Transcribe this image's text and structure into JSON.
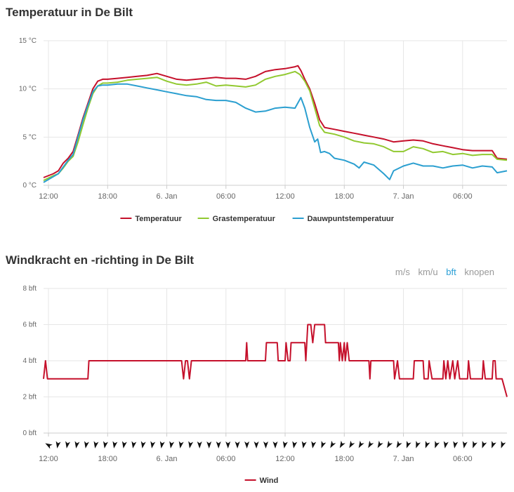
{
  "chart_data": [
    {
      "type": "line",
      "title": "Temperatuur in De Bilt",
      "ylim": [
        0,
        15
      ],
      "yticks": [
        "0 °C",
        "5 °C",
        "10 °C",
        "15 °C"
      ],
      "ytick_values": [
        0,
        5,
        10,
        15
      ],
      "x_unit": "hours since first tick (12:00)",
      "xlim": [
        -0.5,
        46.5
      ],
      "xticks": [
        {
          "h": 0,
          "label": "12:00"
        },
        {
          "h": 6,
          "label": "18:00"
        },
        {
          "h": 12,
          "label": "6. Jan"
        },
        {
          "h": 18,
          "label": "06:00"
        },
        {
          "h": 24,
          "label": "12:00"
        },
        {
          "h": 30,
          "label": "18:00"
        },
        {
          "h": 36,
          "label": "7. Jan"
        },
        {
          "h": 42,
          "label": "06:00"
        }
      ],
      "series": [
        {
          "name": "Temperatuur",
          "color": "#c5102b",
          "points": [
            [
              -0.5,
              0.8
            ],
            [
              0.5,
              1.2
            ],
            [
              1,
              1.5
            ],
            [
              1.5,
              2.3
            ],
            [
              2,
              2.8
            ],
            [
              2.5,
              3.5
            ],
            [
              3,
              5.2
            ],
            [
              3.5,
              7.0
            ],
            [
              4,
              8.5
            ],
            [
              4.5,
              10.0
            ],
            [
              5,
              10.8
            ],
            [
              5.5,
              11.0
            ],
            [
              6,
              11.0
            ],
            [
              7,
              11.1
            ],
            [
              8,
              11.2
            ],
            [
              9,
              11.3
            ],
            [
              10,
              11.4
            ],
            [
              11,
              11.6
            ],
            [
              12,
              11.3
            ],
            [
              13,
              11.0
            ],
            [
              14,
              10.9
            ],
            [
              15,
              11.0
            ],
            [
              16,
              11.1
            ],
            [
              17,
              11.2
            ],
            [
              18,
              11.1
            ],
            [
              19,
              11.1
            ],
            [
              20,
              11.0
            ],
            [
              21,
              11.3
            ],
            [
              22,
              11.8
            ],
            [
              23,
              12.0
            ],
            [
              24,
              12.1
            ],
            [
              25,
              12.3
            ],
            [
              25.3,
              12.4
            ],
            [
              25.6,
              11.9
            ],
            [
              26,
              11.0
            ],
            [
              26.5,
              10.0
            ],
            [
              27,
              8.5
            ],
            [
              27.5,
              6.8
            ],
            [
              28,
              6.0
            ],
            [
              29,
              5.8
            ],
            [
              30,
              5.6
            ],
            [
              31,
              5.4
            ],
            [
              32,
              5.2
            ],
            [
              33,
              5.0
            ],
            [
              34,
              4.8
            ],
            [
              35,
              4.5
            ],
            [
              36,
              4.6
            ],
            [
              37,
              4.7
            ],
            [
              38,
              4.6
            ],
            [
              39,
              4.3
            ],
            [
              40,
              4.1
            ],
            [
              41,
              3.9
            ],
            [
              42,
              3.7
            ],
            [
              43,
              3.6
            ],
            [
              44,
              3.6
            ],
            [
              45,
              3.6
            ],
            [
              45.5,
              2.8
            ],
            [
              46.5,
              2.7
            ]
          ]
        },
        {
          "name": "Grastemperatuur",
          "color": "#91c930",
          "points": [
            [
              -0.5,
              0.5
            ],
            [
              0.5,
              1.0
            ],
            [
              1,
              1.2
            ],
            [
              1.5,
              1.8
            ],
            [
              2,
              2.5
            ],
            [
              2.5,
              3.0
            ],
            [
              3,
              4.5
            ],
            [
              3.5,
              6.3
            ],
            [
              4,
              8.0
            ],
            [
              4.5,
              9.5
            ],
            [
              5,
              10.3
            ],
            [
              5.5,
              10.6
            ],
            [
              6,
              10.6
            ],
            [
              7,
              10.7
            ],
            [
              8,
              10.9
            ],
            [
              9,
              11.0
            ],
            [
              10,
              11.1
            ],
            [
              11,
              11.2
            ],
            [
              12,
              10.8
            ],
            [
              13,
              10.5
            ],
            [
              14,
              10.4
            ],
            [
              15,
              10.5
            ],
            [
              16,
              10.7
            ],
            [
              17,
              10.3
            ],
            [
              18,
              10.4
            ],
            [
              19,
              10.3
            ],
            [
              20,
              10.2
            ],
            [
              21,
              10.4
            ],
            [
              22,
              11.0
            ],
            [
              23,
              11.3
            ],
            [
              24,
              11.5
            ],
            [
              25,
              11.8
            ],
            [
              25.5,
              11.5
            ],
            [
              26,
              10.8
            ],
            [
              26.5,
              9.8
            ],
            [
              27,
              8.0
            ],
            [
              27.5,
              6.2
            ],
            [
              28,
              5.5
            ],
            [
              29,
              5.3
            ],
            [
              30,
              5.0
            ],
            [
              31,
              4.6
            ],
            [
              32,
              4.4
            ],
            [
              33,
              4.3
            ],
            [
              34,
              4.0
            ],
            [
              35,
              3.5
            ],
            [
              36,
              3.5
            ],
            [
              37,
              4.0
            ],
            [
              38,
              3.8
            ],
            [
              39,
              3.4
            ],
            [
              40,
              3.5
            ],
            [
              41,
              3.2
            ],
            [
              42,
              3.3
            ],
            [
              43,
              3.1
            ],
            [
              44,
              3.2
            ],
            [
              45,
              3.2
            ],
            [
              45.5,
              2.7
            ],
            [
              46.5,
              2.6
            ]
          ]
        },
        {
          "name": "Dauwpuntstemperatuur",
          "color": "#2b9fd0",
          "points": [
            [
              -0.5,
              0.3
            ],
            [
              0.5,
              0.9
            ],
            [
              1,
              1.2
            ],
            [
              1.5,
              1.9
            ],
            [
              2,
              2.6
            ],
            [
              2.5,
              3.2
            ],
            [
              3,
              5.0
            ],
            [
              3.5,
              6.8
            ],
            [
              4,
              8.3
            ],
            [
              4.5,
              9.7
            ],
            [
              5,
              10.3
            ],
            [
              5.5,
              10.4
            ],
            [
              6,
              10.4
            ],
            [
              7,
              10.5
            ],
            [
              8,
              10.5
            ],
            [
              9,
              10.3
            ],
            [
              10,
              10.1
            ],
            [
              11,
              9.9
            ],
            [
              12,
              9.7
            ],
            [
              13,
              9.5
            ],
            [
              14,
              9.3
            ],
            [
              15,
              9.2
            ],
            [
              16,
              8.9
            ],
            [
              17,
              8.8
            ],
            [
              18,
              8.8
            ],
            [
              19,
              8.6
            ],
            [
              20,
              8.0
            ],
            [
              21,
              7.6
            ],
            [
              22,
              7.7
            ],
            [
              23,
              8.0
            ],
            [
              24,
              8.1
            ],
            [
              25,
              8.0
            ],
            [
              25.6,
              9.1
            ],
            [
              26,
              8.0
            ],
            [
              26.5,
              6.0
            ],
            [
              27,
              4.5
            ],
            [
              27.3,
              4.8
            ],
            [
              27.6,
              3.4
            ],
            [
              28,
              3.5
            ],
            [
              28.5,
              3.3
            ],
            [
              29,
              2.8
            ],
            [
              30,
              2.6
            ],
            [
              31,
              2.2
            ],
            [
              31.5,
              1.8
            ],
            [
              32,
              2.4
            ],
            [
              33,
              2.1
            ],
            [
              34,
              1.2
            ],
            [
              34.6,
              0.6
            ],
            [
              35,
              1.5
            ],
            [
              36,
              2.0
            ],
            [
              37,
              2.3
            ],
            [
              38,
              2.0
            ],
            [
              39,
              2.0
            ],
            [
              40,
              1.8
            ],
            [
              41,
              2.0
            ],
            [
              42,
              2.1
            ],
            [
              43,
              1.8
            ],
            [
              44,
              2.0
            ],
            [
              45,
              1.9
            ],
            [
              45.5,
              1.3
            ],
            [
              46.5,
              1.5
            ]
          ]
        }
      ],
      "legend_placement": "bottom-center"
    },
    {
      "type": "line",
      "title": "Windkracht en -richting in De Bilt",
      "ylim": [
        0,
        8
      ],
      "yticks": [
        "0 bft",
        "2 bft",
        "4 bft",
        "6 bft",
        "8 bft"
      ],
      "ytick_values": [
        0,
        2,
        4,
        6,
        8
      ],
      "x_unit": "hours since first tick (12:00)",
      "xlim": [
        -0.5,
        46.5
      ],
      "xticks": [
        {
          "h": 0,
          "label": "12:00"
        },
        {
          "h": 6,
          "label": "18:00"
        },
        {
          "h": 12,
          "label": "6. Jan"
        },
        {
          "h": 18,
          "label": "06:00"
        },
        {
          "h": 24,
          "label": "12:00"
        },
        {
          "h": 30,
          "label": "18:00"
        },
        {
          "h": 36,
          "label": "7. Jan"
        },
        {
          "h": 42,
          "label": "06:00"
        }
      ],
      "unit_options": [
        "m/s",
        "km/u",
        "bft",
        "knopen"
      ],
      "selected_unit": "bft",
      "series": [
        {
          "name": "Wind",
          "color": "#c5102b",
          "points": [
            [
              -0.5,
              3
            ],
            [
              -0.3,
              4
            ],
            [
              -0.1,
              3
            ],
            [
              4,
              3
            ],
            [
              4.1,
              4
            ],
            [
              13.5,
              4
            ],
            [
              13.7,
              3
            ],
            [
              13.9,
              4
            ],
            [
              14.1,
              4
            ],
            [
              14.3,
              3
            ],
            [
              14.5,
              4
            ],
            [
              20,
              4
            ],
            [
              20.1,
              5
            ],
            [
              20.2,
              4
            ],
            [
              22,
              4
            ],
            [
              22.1,
              5
            ],
            [
              23.2,
              5
            ],
            [
              23.3,
              4
            ],
            [
              24,
              4
            ],
            [
              24.1,
              5
            ],
            [
              24.3,
              4
            ],
            [
              24.5,
              4
            ],
            [
              24.6,
              5
            ],
            [
              26,
              5
            ],
            [
              26.1,
              4
            ],
            [
              26.3,
              6
            ],
            [
              26.6,
              6
            ],
            [
              26.8,
              5
            ],
            [
              27,
              6
            ],
            [
              28,
              6
            ],
            [
              28.1,
              5
            ],
            [
              29.4,
              5
            ],
            [
              29.5,
              4
            ],
            [
              29.6,
              5
            ],
            [
              29.8,
              4
            ],
            [
              30,
              5
            ],
            [
              30.1,
              4
            ],
            [
              30.3,
              5
            ],
            [
              30.5,
              4
            ],
            [
              32.5,
              4
            ],
            [
              32.6,
              3
            ],
            [
              32.7,
              4
            ],
            [
              35,
              4
            ],
            [
              35.1,
              3
            ],
            [
              35.4,
              4
            ],
            [
              35.6,
              3
            ],
            [
              37,
              3
            ],
            [
              37.1,
              4
            ],
            [
              38,
              4
            ],
            [
              38.1,
              3
            ],
            [
              38.5,
              3
            ],
            [
              38.6,
              4
            ],
            [
              38.9,
              3
            ],
            [
              40,
              3
            ],
            [
              40.1,
              4
            ],
            [
              40.3,
              3
            ],
            [
              40.5,
              4
            ],
            [
              40.7,
              3
            ],
            [
              41,
              4
            ],
            [
              41.2,
              3
            ],
            [
              41.5,
              4
            ],
            [
              41.7,
              3
            ],
            [
              42.5,
              3
            ],
            [
              42.6,
              4
            ],
            [
              42.8,
              3
            ],
            [
              44,
              3
            ],
            [
              44.1,
              4
            ],
            [
              44.3,
              3
            ],
            [
              45,
              3
            ],
            [
              45.1,
              4
            ],
            [
              45.3,
              4
            ],
            [
              45.4,
              3
            ],
            [
              46,
              3
            ],
            [
              46.5,
              2
            ]
          ]
        }
      ],
      "wind_directions_deg": [
        300,
        190,
        190,
        190,
        190,
        190,
        190,
        190,
        190,
        190,
        190,
        190,
        190,
        190,
        190,
        190,
        180,
        180,
        180,
        180,
        180,
        180,
        180,
        180,
        180,
        190,
        190,
        190,
        190,
        200,
        210,
        210,
        210,
        210,
        210,
        210,
        210,
        210,
        200,
        200,
        200,
        200,
        190,
        190,
        190,
        200,
        200,
        200,
        200
      ],
      "legend_placement": "bottom-center"
    }
  ]
}
